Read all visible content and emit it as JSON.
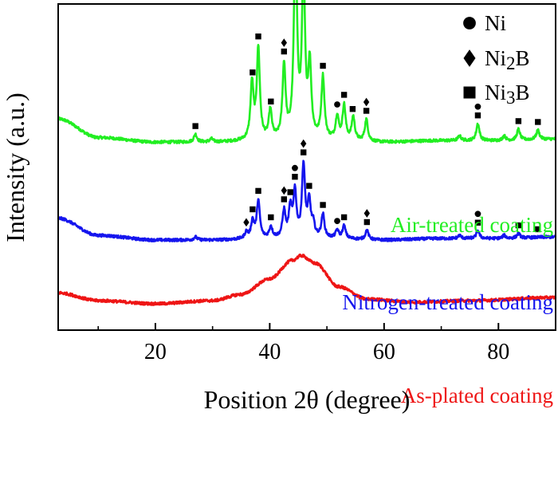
{
  "chart_data": {
    "type": "line",
    "title": "",
    "xlabel": "Position 2θ (degree)",
    "ylabel": "Intensity (a.u.)",
    "xlim": [
      3,
      90
    ],
    "ylim": [
      -0.2,
      10.3
    ],
    "y_ticks_shown": false,
    "x_ticks": [
      20,
      40,
      60,
      80
    ],
    "x_tick_labels": [
      "20",
      "40",
      "60",
      "80"
    ],
    "grid": false,
    "legend": {
      "position": "top-right",
      "entries": [
        {
          "marker": "circle",
          "label": "Ni"
        },
        {
          "marker": "diamond",
          "label": "Ni2B"
        },
        {
          "marker": "square",
          "label": "Ni3B"
        }
      ]
    },
    "series": [
      {
        "name": "Air-treated coating",
        "color": "#22ee22",
        "baseline": [
          [
            3,
            6.6
          ],
          [
            10,
            6.0
          ],
          [
            20,
            5.85
          ],
          [
            30,
            5.85
          ],
          [
            40,
            5.9
          ],
          [
            50,
            5.9
          ],
          [
            60,
            5.85
          ],
          [
            70,
            5.9
          ],
          [
            80,
            5.9
          ],
          [
            90,
            5.95
          ]
        ],
        "peaks": [
          [
            27.0,
            0.25
          ],
          [
            29.8,
            0.1
          ],
          [
            36.9,
            1.8
          ],
          [
            38.0,
            2.9
          ],
          [
            40.1,
            0.9
          ],
          [
            42.5,
            2.35
          ],
          [
            44.5,
            6.5
          ],
          [
            45.9,
            5.3
          ],
          [
            47.0,
            2.3
          ],
          [
            49.3,
            2.0
          ],
          [
            51.8,
            0.75
          ],
          [
            53.0,
            1.1
          ],
          [
            54.6,
            0.75
          ],
          [
            56.9,
            0.7
          ],
          [
            73.2,
            0.15
          ],
          [
            76.4,
            0.55
          ],
          [
            81.0,
            0.15
          ],
          [
            83.5,
            0.35
          ],
          [
            86.9,
            0.3
          ]
        ],
        "markers": [
          {
            "x": 27.0,
            "symbols": [
              "square"
            ]
          },
          {
            "x": 37.0,
            "symbols": [
              "square"
            ]
          },
          {
            "x": 38.0,
            "symbols": [
              "square"
            ]
          },
          {
            "x": 40.2,
            "symbols": [
              "square"
            ]
          },
          {
            "x": 42.5,
            "symbols": [
              "diamond",
              "square"
            ]
          },
          {
            "x": 44.5,
            "symbols": [
              "circle",
              "square"
            ]
          },
          {
            "x": 45.9,
            "symbols": [
              "diamond",
              "square"
            ]
          },
          {
            "x": 49.3,
            "symbols": [
              "square"
            ]
          },
          {
            "x": 51.8,
            "symbols": [
              "circle"
            ]
          },
          {
            "x": 53.0,
            "symbols": [
              "square"
            ]
          },
          {
            "x": 54.5,
            "symbols": [
              "square"
            ]
          },
          {
            "x": 56.9,
            "symbols": [
              "diamond",
              "square"
            ]
          },
          {
            "x": 76.4,
            "symbols": [
              "circle",
              "square"
            ]
          },
          {
            "x": 83.5,
            "symbols": [
              "square"
            ]
          },
          {
            "x": 86.9,
            "symbols": [
              "square"
            ]
          }
        ]
      },
      {
        "name": "Nitrogen-treated coating",
        "color": "#1515ee",
        "baseline": [
          [
            3,
            3.4
          ],
          [
            10,
            2.85
          ],
          [
            20,
            2.7
          ],
          [
            30,
            2.7
          ],
          [
            40,
            2.75
          ],
          [
            50,
            2.75
          ],
          [
            60,
            2.7
          ],
          [
            70,
            2.75
          ],
          [
            80,
            2.75
          ],
          [
            90,
            2.8
          ]
        ],
        "peaks": [
          [
            27.0,
            0.1
          ],
          [
            35.9,
            0.2
          ],
          [
            37.0,
            0.55
          ],
          [
            38.0,
            1.2
          ],
          [
            40.2,
            0.35
          ],
          [
            42.5,
            0.85
          ],
          [
            43.6,
            0.9
          ],
          [
            44.4,
            1.45
          ],
          [
            45.9,
            2.3
          ],
          [
            46.9,
            1.1
          ],
          [
            47.6,
            0.4
          ],
          [
            49.3,
            0.75
          ],
          [
            51.8,
            0.25
          ],
          [
            53.0,
            0.4
          ],
          [
            57.0,
            0.3
          ],
          [
            73.2,
            0.1
          ],
          [
            76.4,
            0.25
          ],
          [
            81.0,
            0.1
          ],
          [
            83.5,
            0.15
          ]
        ],
        "markers": [
          {
            "x": 35.9,
            "symbols": [
              "diamond"
            ]
          },
          {
            "x": 37.0,
            "symbols": [
              "square"
            ]
          },
          {
            "x": 38.0,
            "symbols": [
              "square"
            ]
          },
          {
            "x": 40.2,
            "symbols": [
              "square"
            ]
          },
          {
            "x": 42.5,
            "symbols": [
              "diamond",
              "square"
            ]
          },
          {
            "x": 43.6,
            "symbols": [
              "square"
            ]
          },
          {
            "x": 44.4,
            "symbols": [
              "circle",
              "square"
            ]
          },
          {
            "x": 45.9,
            "symbols": [
              "diamond",
              "square"
            ]
          },
          {
            "x": 46.9,
            "symbols": [
              "square"
            ]
          },
          {
            "x": 49.3,
            "symbols": [
              "square"
            ]
          },
          {
            "x": 51.8,
            "symbols": [
              "circle"
            ]
          },
          {
            "x": 53.0,
            "symbols": [
              "square"
            ]
          },
          {
            "x": 57.0,
            "symbols": [
              "diamond",
              "square"
            ]
          },
          {
            "x": 76.4,
            "symbols": [
              "circle",
              "square"
            ]
          },
          {
            "x": 83.5,
            "symbols": [
              "square"
            ]
          },
          {
            "x": 86.9,
            "symbols": [
              "square"
            ]
          }
        ]
      },
      {
        "name": "As-plated coating",
        "color": "#ee1515",
        "baseline": [
          [
            3,
            1.0
          ],
          [
            10,
            0.75
          ],
          [
            20,
            0.65
          ],
          [
            30,
            0.75
          ],
          [
            35,
            0.95
          ],
          [
            40,
            1.45
          ],
          [
            44,
            2.05
          ],
          [
            45.5,
            2.2
          ],
          [
            48,
            1.95
          ],
          [
            52,
            1.2
          ],
          [
            57,
            0.8
          ],
          [
            65,
            0.7
          ],
          [
            75,
            0.75
          ],
          [
            90,
            0.85
          ]
        ],
        "peaks": [],
        "markers": []
      }
    ]
  }
}
